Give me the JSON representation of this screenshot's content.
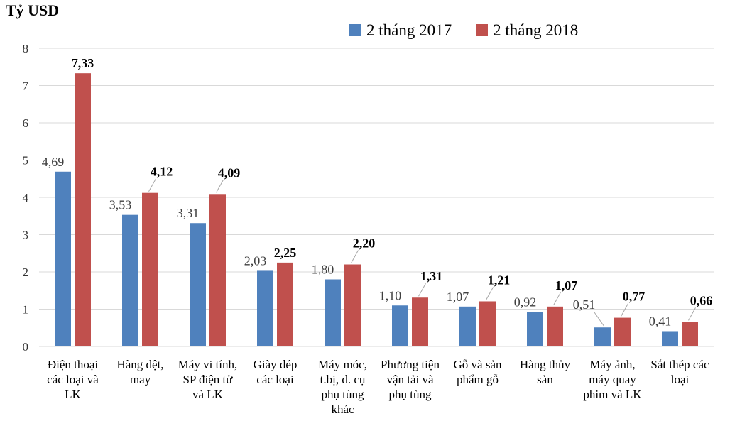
{
  "title": "Tỷ USD",
  "legend": {
    "items": [
      "2 tháng 2017",
      "2 tháng 2018"
    ]
  },
  "chart_data": {
    "type": "bar",
    "title": "Tỷ USD",
    "xlabel": "",
    "ylabel": "Tỷ USD",
    "ylim": [
      0,
      8
    ],
    "ytick_step": 1,
    "grid": true,
    "legend_position": "top",
    "colors": {
      "grid": "#D9D9D9",
      "axis_line": "#D9D9D9",
      "leader_line": "#A6A6A6",
      "value_label_regular": "#404040",
      "value_label_bold": "#000000",
      "series_2017": "#4F81BD",
      "series_2018": "#C0504D"
    },
    "categories": [
      [
        "Điện thoại",
        "các loại và",
        "LK"
      ],
      [
        "Hàng dệt,",
        "may"
      ],
      [
        "Máy vi tính,",
        "SP điện tử",
        "và LK"
      ],
      [
        "Giày dép",
        "các loại"
      ],
      [
        "Máy móc,",
        "t.bị, d. cụ",
        "phụ tùng",
        "khác"
      ],
      [
        "Phương tiện",
        "vận tải và",
        "phụ tùng"
      ],
      [
        "Gỗ và sản",
        "phẩm gỗ"
      ],
      [
        "Hàng thủy",
        "sản"
      ],
      [
        "Máy ảnh,",
        "máy quay",
        "phim và LK"
      ],
      [
        "Sắt thép các",
        "loại"
      ]
    ],
    "yticks": [
      0,
      1,
      2,
      3,
      4,
      5,
      6,
      7,
      8
    ],
    "series": [
      {
        "name": "2 tháng 2017",
        "color": "#4F81BD",
        "values": [
          4.69,
          3.53,
          3.31,
          2.03,
          1.8,
          1.1,
          1.07,
          0.92,
          0.51,
          0.41
        ],
        "labels": [
          "4,69",
          "3,53",
          "3,31",
          "2,03",
          "1,80",
          "1,10",
          "1,07",
          "0,92",
          "0,51",
          "0,41"
        ],
        "bold_labels": false,
        "label_leader": [
          false,
          false,
          false,
          false,
          false,
          false,
          false,
          false,
          true,
          false
        ]
      },
      {
        "name": "2 tháng 2018",
        "color": "#C0504D",
        "values": [
          7.33,
          4.12,
          4.09,
          2.25,
          2.2,
          1.31,
          1.21,
          1.07,
          0.77,
          0.66
        ],
        "labels": [
          "7,33",
          "4,12",
          "4,09",
          "2,25",
          "2,20",
          "1,31",
          "1,21",
          "1,07",
          "0,77",
          "0,66"
        ],
        "bold_labels": true,
        "label_leader": [
          false,
          true,
          true,
          false,
          true,
          true,
          true,
          true,
          true,
          true
        ]
      }
    ]
  }
}
